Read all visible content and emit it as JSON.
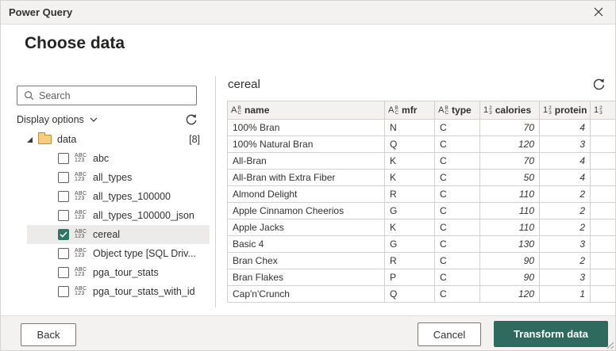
{
  "window": {
    "title": "Power Query"
  },
  "page": {
    "heading": "Choose data"
  },
  "left_panel": {
    "search_placeholder": "Search",
    "display_options_label": "Display options",
    "folder": {
      "name": "data",
      "count": "[8]"
    },
    "items": [
      {
        "label": "abc",
        "checked": false,
        "selected": false
      },
      {
        "label": "all_types",
        "checked": false,
        "selected": false
      },
      {
        "label": "all_types_100000",
        "checked": false,
        "selected": false
      },
      {
        "label": "all_types_100000_json",
        "checked": false,
        "selected": false
      },
      {
        "label": "cereal",
        "checked": true,
        "selected": true
      },
      {
        "label": "Object type [SQL Driv...",
        "checked": false,
        "selected": false
      },
      {
        "label": "pga_tour_stats",
        "checked": false,
        "selected": false
      },
      {
        "label": "pga_tour_stats_with_id",
        "checked": false,
        "selected": false
      }
    ]
  },
  "preview": {
    "title": "cereal",
    "columns": [
      {
        "label": "name",
        "type": "text"
      },
      {
        "label": "mfr",
        "type": "text"
      },
      {
        "label": "type",
        "type": "text"
      },
      {
        "label": "calories",
        "type": "number"
      },
      {
        "label": "protein",
        "type": "number"
      },
      {
        "label": "",
        "type": "number"
      }
    ],
    "rows": [
      [
        "100% Bran",
        "N",
        "C",
        "70",
        "4"
      ],
      [
        "100% Natural Bran",
        "Q",
        "C",
        "120",
        "3"
      ],
      [
        "All-Bran",
        "K",
        "C",
        "70",
        "4"
      ],
      [
        "All-Bran with Extra Fiber",
        "K",
        "C",
        "50",
        "4"
      ],
      [
        "Almond Delight",
        "R",
        "C",
        "110",
        "2"
      ],
      [
        "Apple Cinnamon Cheerios",
        "G",
        "C",
        "110",
        "2"
      ],
      [
        "Apple Jacks",
        "K",
        "C",
        "110",
        "2"
      ],
      [
        "Basic 4",
        "G",
        "C",
        "130",
        "3"
      ],
      [
        "Bran Chex",
        "R",
        "C",
        "90",
        "2"
      ],
      [
        "Bran Flakes",
        "P",
        "C",
        "90",
        "3"
      ],
      [
        "Cap'n'Crunch",
        "Q",
        "C",
        "120",
        "1"
      ]
    ]
  },
  "footer": {
    "back_label": "Back",
    "cancel_label": "Cancel",
    "transform_label": "Transform data"
  },
  "colors": {
    "accent_green": "#2e6a5e",
    "checkbox_green": "#2c7866",
    "titlebar_bg": "#f3f2f1",
    "selected_row_bg": "#edebe9",
    "table_header_bg": "#f3f2f1",
    "grid_border": "#d2d0ce"
  }
}
